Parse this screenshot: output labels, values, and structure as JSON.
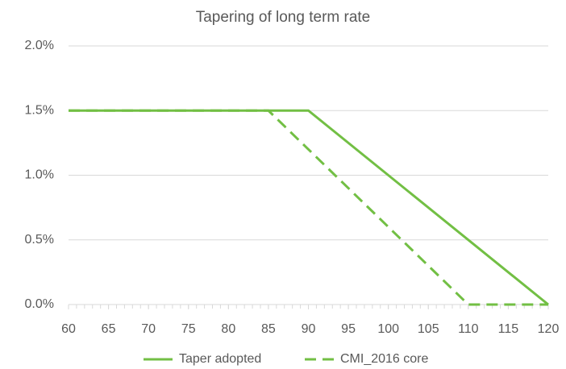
{
  "chart_data": {
    "type": "line",
    "title": "Tapering of long term rate",
    "series": [
      {
        "name": "Taper adopted",
        "color": "#72bf44",
        "style": "solid",
        "x": [
          60,
          90,
          120
        ],
        "values": [
          1.5,
          1.5,
          0
        ]
      },
      {
        "name": "CMI_2016 core",
        "color": "#72bf44",
        "style": "dashed",
        "x": [
          60,
          85,
          110,
          120
        ],
        "values": [
          1.5,
          1.5,
          0,
          0
        ]
      }
    ],
    "xlim": [
      60,
      120
    ],
    "xticks": [
      60,
      65,
      70,
      75,
      80,
      85,
      90,
      95,
      100,
      105,
      110,
      115,
      120
    ],
    "ylim": [
      0,
      2
    ],
    "yticks": [
      {
        "value": 0,
        "label": "0.0%"
      },
      {
        "value": 0.5,
        "label": "0.5%"
      },
      {
        "value": 1,
        "label": "1.0%"
      },
      {
        "value": 1.5,
        "label": "1.5%"
      },
      {
        "value": 2,
        "label": "2.0%"
      }
    ],
    "grid": true,
    "legend": "bottom"
  }
}
